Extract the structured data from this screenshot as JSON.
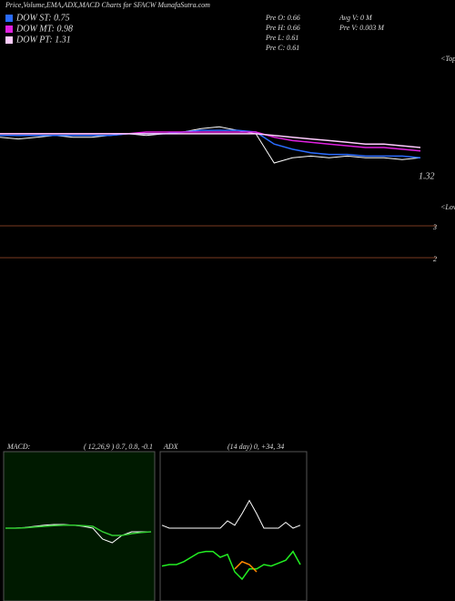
{
  "header": {
    "title": "Price,Volume,EMA,ADX,MACD Charts for SFACW MunafaSutra.com"
  },
  "stats": [
    {
      "label": "Pre  O: 0.66"
    },
    {
      "label": "Pre  H: 0.66"
    },
    {
      "label": "Pre  L: 0.61"
    },
    {
      "label": "Pre  C: 0.61"
    },
    {
      "label": "Avg V: 0  M"
    },
    {
      "label": "Pre  V: 0.003 M"
    }
  ],
  "level_labels": [
    "3",
    "2"
  ],
  "chart_data": [
    {
      "type": "line",
      "ylim": [
        0.3,
        1.2
      ],
      "annotations": [
        "<Tops",
        "<Lows",
        "1.32"
      ],
      "series": [
        {
          "color": "#ffffff",
          "values": [
            0.72,
            0.71,
            0.72,
            0.73,
            0.72,
            0.72,
            0.73,
            0.74,
            0.73,
            0.74,
            0.75,
            0.77,
            0.78,
            0.76,
            0.74,
            0.57,
            0.6,
            0.61,
            0.6,
            0.61,
            0.6,
            0.6,
            0.59,
            0.6
          ]
        },
        {
          "name": "DOW ST: 0.75",
          "color": "#2a6cff",
          "values": [
            0.73,
            0.73,
            0.73,
            0.73,
            0.73,
            0.73,
            0.73,
            0.74,
            0.74,
            0.74,
            0.75,
            0.76,
            0.76,
            0.76,
            0.75,
            0.68,
            0.65,
            0.63,
            0.62,
            0.62,
            0.61,
            0.61,
            0.61,
            0.6
          ]
        },
        {
          "name": "DOW MT: 0.98",
          "color": "#e020e0",
          "values": [
            0.74,
            0.74,
            0.74,
            0.74,
            0.74,
            0.74,
            0.74,
            0.74,
            0.75,
            0.75,
            0.75,
            0.75,
            0.75,
            0.75,
            0.75,
            0.72,
            0.7,
            0.69,
            0.68,
            0.67,
            0.66,
            0.66,
            0.65,
            0.64
          ]
        },
        {
          "name": "DOW PT: 1.31",
          "color": "#ffccff",
          "values": [
            0.74,
            0.74,
            0.74,
            0.74,
            0.74,
            0.74,
            0.74,
            0.74,
            0.74,
            0.74,
            0.74,
            0.74,
            0.74,
            0.74,
            0.74,
            0.73,
            0.72,
            0.71,
            0.7,
            0.69,
            0.68,
            0.68,
            0.67,
            0.66
          ]
        }
      ]
    },
    {
      "type": "line",
      "title": "MACD:",
      "subtitle": "( 12,26,9 ) 0.7, 0.8, -0.1",
      "ylim": [
        -2,
        2
      ],
      "series": [
        {
          "color": "#ffffff",
          "values": [
            0,
            0,
            0.02,
            0.05,
            0.08,
            0.1,
            0.1,
            0.08,
            0.05,
            0,
            -0.3,
            -0.4,
            -0.2,
            -0.1,
            -0.1,
            -0.1
          ]
        },
        {
          "color": "#33cc33",
          "values": [
            0,
            0,
            0.01,
            0.03,
            0.05,
            0.07,
            0.08,
            0.08,
            0.07,
            0.05,
            -0.1,
            -0.2,
            -0.2,
            -0.15,
            -0.12,
            -0.1
          ]
        }
      ]
    },
    {
      "type": "line",
      "title": "ADX",
      "subtitle": "(14  day) 0, +34, 34",
      "ylim": [
        0,
        100
      ],
      "series": [
        {
          "color": "#ffffff",
          "values": [
            52,
            50,
            50,
            50,
            50,
            50,
            50,
            50,
            50,
            55,
            52,
            60,
            69,
            60,
            50,
            50,
            50,
            54,
            50,
            52
          ]
        },
        {
          "color": "#22ee22",
          "values": [
            24,
            25,
            25,
            27,
            30,
            33,
            34,
            34,
            30,
            32,
            20,
            15,
            22,
            22,
            25,
            24,
            26,
            28,
            34,
            25
          ]
        },
        {
          "color": "#ff8800",
          "values": [
            null,
            null,
            null,
            null,
            null,
            null,
            null,
            null,
            null,
            null,
            22,
            27,
            25,
            20,
            null,
            null,
            null,
            null,
            null,
            null
          ]
        }
      ]
    }
  ]
}
